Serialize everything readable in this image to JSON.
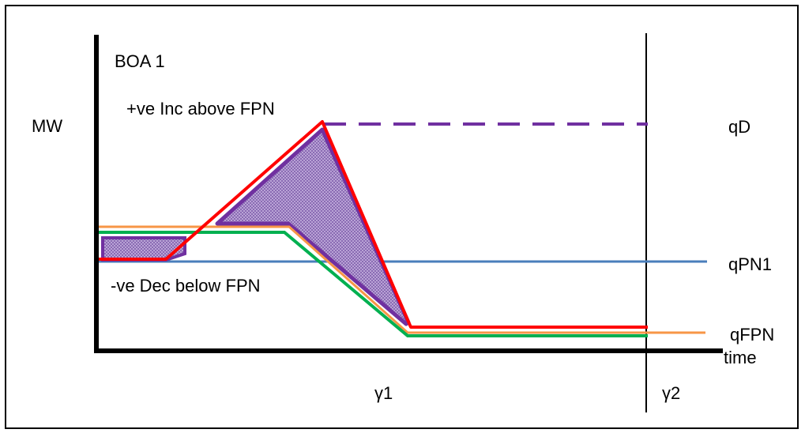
{
  "labels": {
    "boa": "BOA 1",
    "mw": "MW",
    "inc": "+ve Inc above FPN",
    "dec": "-ve Dec below FPN",
    "qd": "qD",
    "qpn1": "qPN1",
    "qfpn": "qFPN",
    "time": "time",
    "gamma1": "γ1",
    "gamma2": "γ2"
  },
  "colors": {
    "axis": "#000000",
    "qpn1_line": "#4a7ebb",
    "qfpn_line": "#f79646",
    "green_line": "#00b050",
    "boa_line": "#ff0000",
    "qd_dashed": "#7030a0",
    "area_fill": "#9b7fbf",
    "area_outline": "#7030a0"
  }
}
